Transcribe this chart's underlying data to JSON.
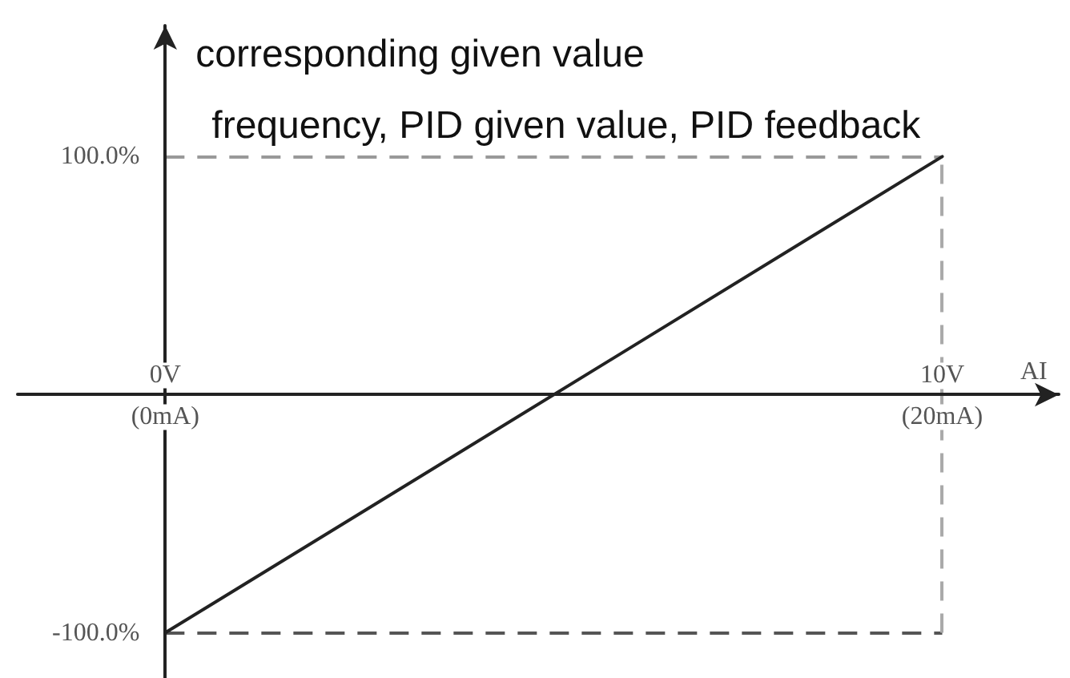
{
  "chart_data": {
    "type": "line",
    "xlabel": "AI",
    "ylabel": "corresponding given value",
    "annotations": [
      "frequency, PID given value, PID feedback"
    ],
    "x": [
      0,
      10
    ],
    "values": [
      -100,
      100
    ],
    "color": "#222222",
    "marker": "none",
    "line_style": "solid",
    "xlim": [
      -1.9,
      11.5
    ],
    "ylim": [
      -119,
      155
    ],
    "x2lim": [
      -3.8,
      23
    ],
    "xticks": [
      {
        "value": 0,
        "label": "0V"
      },
      {
        "value": 10,
        "label": "10V"
      }
    ],
    "x2ticks": [
      {
        "value": 0,
        "label": "(0mA)"
      },
      {
        "value": 20,
        "label": "(20mA)"
      }
    ],
    "yticks": [
      {
        "value": -100,
        "label": "-100.0%"
      },
      {
        "value": 100,
        "label": "100.0%"
      }
    ],
    "ref_lines": [
      {
        "axis": "y",
        "value": 100,
        "color": "#999999",
        "line_style": "dashed"
      },
      {
        "axis": "y",
        "value": -100,
        "color": "#555555",
        "line_style": "dashed"
      },
      {
        "axis": "x",
        "value": 10,
        "color": "#aaaaaa",
        "line_style": "dashed"
      }
    ]
  }
}
